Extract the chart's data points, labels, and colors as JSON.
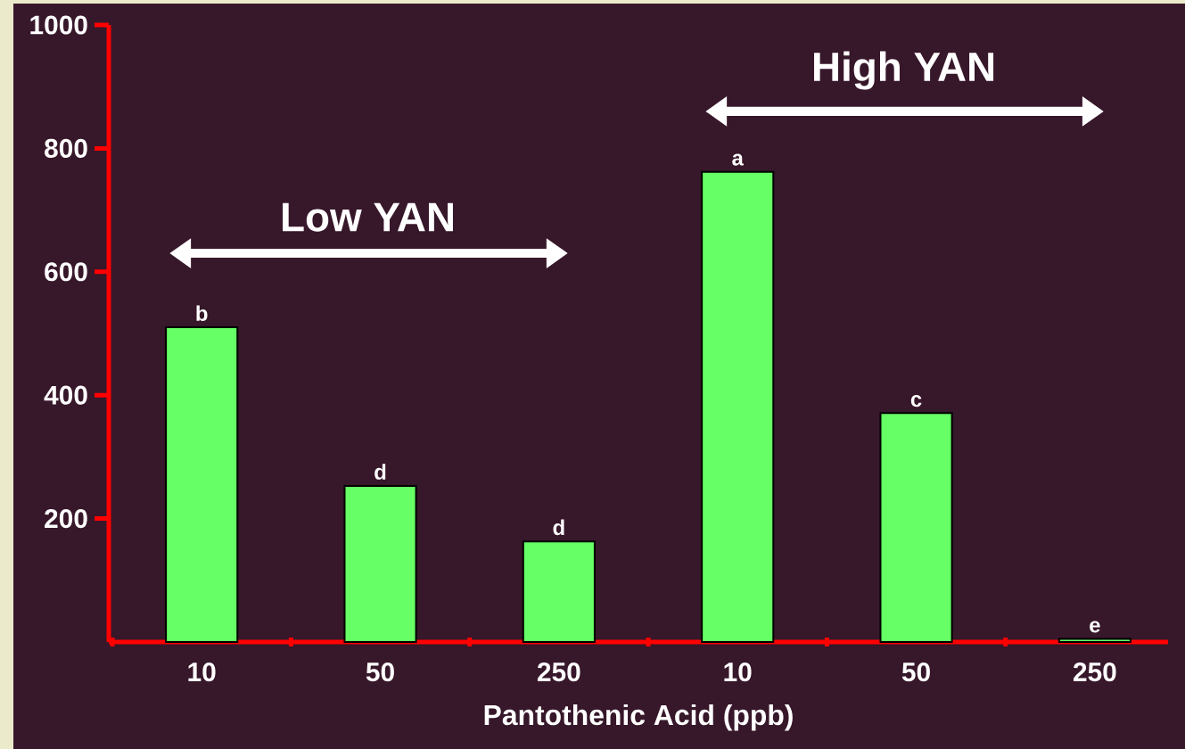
{
  "chart_data": {
    "type": "bar",
    "xlabel": "Pantothenic Acid (ppb)",
    "categories": [
      "10",
      "50",
      "250",
      "10",
      "50",
      "250"
    ],
    "values": [
      510,
      253,
      163,
      762,
      371,
      5
    ],
    "value_labels": [
      "b",
      "d",
      "d",
      "a",
      "c",
      "e"
    ],
    "color": "#66ff66",
    "ylim": [
      0,
      1000
    ],
    "yticks": [
      200,
      400,
      600,
      800,
      1000
    ],
    "annotations": [
      "Low YAN",
      "High YAN"
    ]
  }
}
